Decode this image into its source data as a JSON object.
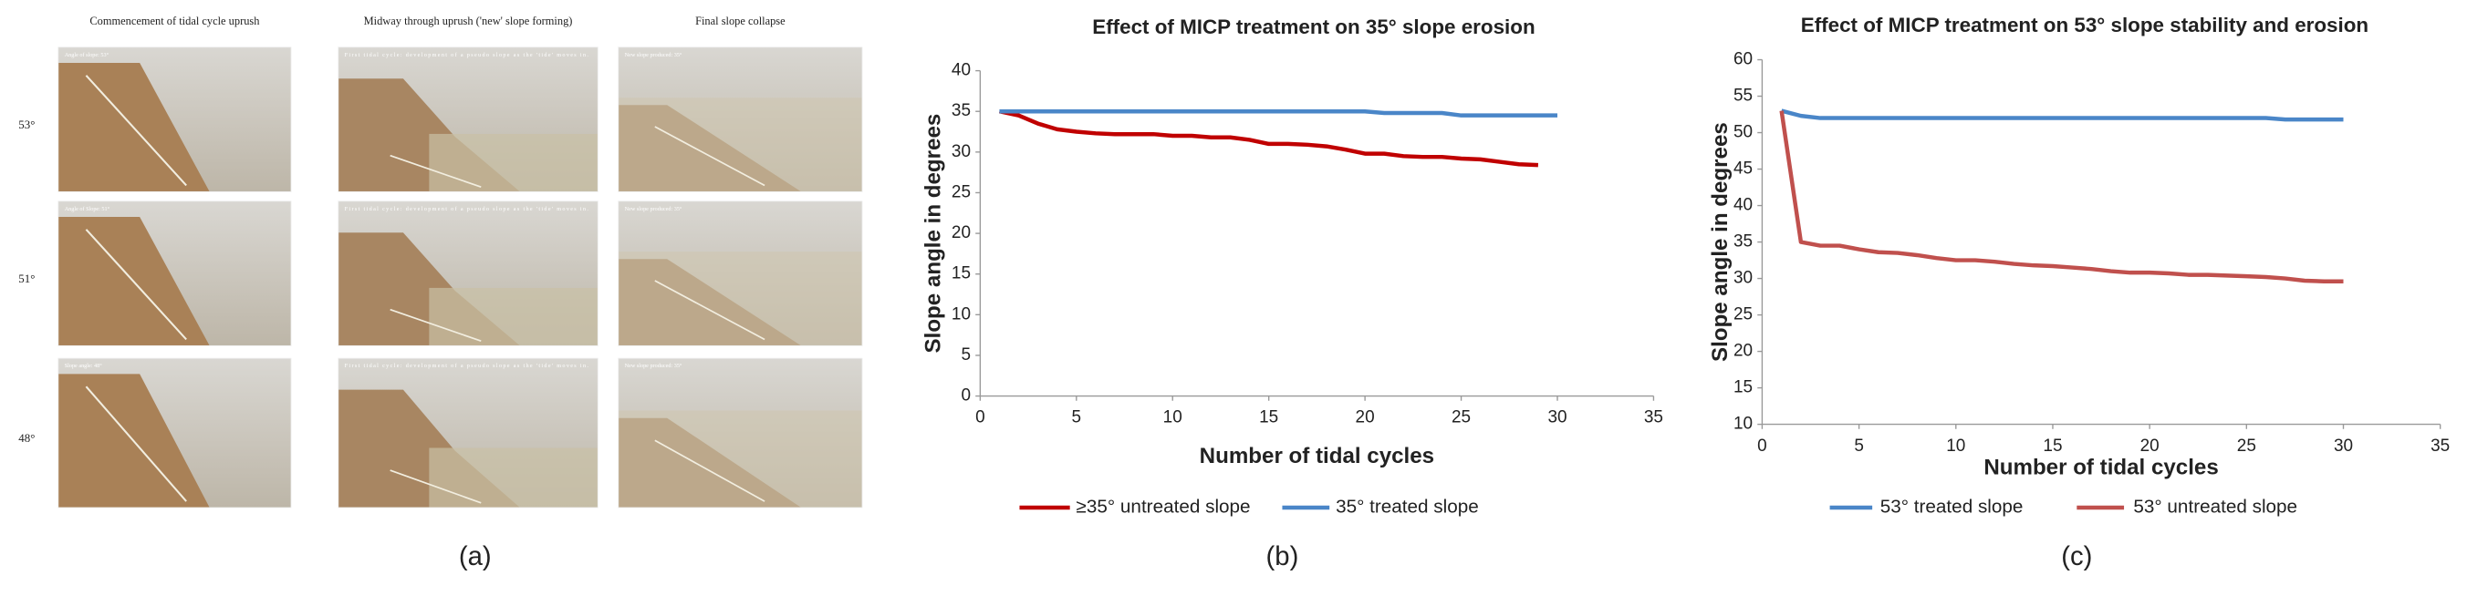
{
  "panel_a": {
    "caption": "(a)",
    "columns": [
      "Commencement of tidal cycle uprush",
      "Midway through uprush ('new' slope forming)",
      "Final slope collapse"
    ],
    "rows": [
      "53°",
      "51°",
      "48°"
    ],
    "photo_labels": [
      [
        "Angle of slope: 53°",
        "First tidal cycle: development of a pseudo slope as the 'tide' moves in.",
        "New slope produced: 35°"
      ],
      [
        "Angle of Slope: 51°",
        "First tidal cycle: development of a pseudo slope as the 'tide' moves in.",
        "New slope produced: 35°"
      ],
      [
        "Slope angle: 48°",
        "First tidal cycle: development of a pseudo slope as the 'tide' moves in.",
        "New slope produced: 35°"
      ]
    ]
  },
  "chart_data": [
    {
      "type": "line",
      "caption": "(b)",
      "title": "Effect of MICP treatment on 35° slope erosion",
      "xlabel": "Number of tidal cycles",
      "ylabel": "Slope angle in degrees",
      "xlim": [
        0,
        35
      ],
      "xticks": [
        0,
        5,
        10,
        15,
        20,
        25,
        30,
        35
      ],
      "ylim": [
        0,
        40
      ],
      "yticks": [
        0,
        5,
        10,
        15,
        20,
        25,
        30,
        35,
        40
      ],
      "legend": "bottom",
      "series": [
        {
          "name": "≥35° untreated slope",
          "color": "#c00000",
          "x": [
            1,
            2,
            3,
            4,
            5,
            6,
            7,
            8,
            9,
            10,
            11,
            12,
            13,
            14,
            15,
            16,
            17,
            18,
            19,
            20,
            21,
            22,
            23,
            24,
            25,
            26,
            27,
            28,
            29
          ],
          "values": [
            35,
            34.5,
            33.5,
            32.8,
            32.5,
            32.3,
            32.2,
            32.2,
            32.2,
            32,
            32,
            31.8,
            31.8,
            31.5,
            31,
            31,
            30.9,
            30.7,
            30.3,
            29.8,
            29.8,
            29.5,
            29.4,
            29.4,
            29.2,
            29.1,
            28.8,
            28.5,
            28.4
          ]
        },
        {
          "name": "35° treated slope",
          "color": "#4a86c8",
          "x": [
            1,
            2,
            3,
            4,
            5,
            6,
            7,
            8,
            9,
            10,
            11,
            12,
            13,
            14,
            15,
            16,
            17,
            18,
            19,
            20,
            21,
            22,
            23,
            24,
            25,
            26,
            27,
            28,
            29,
            30
          ],
          "values": [
            35,
            35,
            35,
            35,
            35,
            35,
            35,
            35,
            35,
            35,
            35,
            35,
            35,
            35,
            35,
            35,
            35,
            35,
            35,
            35,
            34.8,
            34.8,
            34.8,
            34.8,
            34.5,
            34.5,
            34.5,
            34.5,
            34.5,
            34.5
          ]
        }
      ]
    },
    {
      "type": "line",
      "caption": "(c)",
      "title": "Effect of MICP treatment on 53° slope stability and erosion",
      "xlabel": "Number of tidal cycles",
      "ylabel": "Slope angle in degrees",
      "xlim": [
        0,
        35
      ],
      "xticks": [
        0,
        5,
        10,
        15,
        20,
        25,
        30,
        35
      ],
      "ylim": [
        10,
        60
      ],
      "yticks": [
        10,
        15,
        20,
        25,
        30,
        35,
        40,
        45,
        50,
        55,
        60
      ],
      "legend": "bottom",
      "series": [
        {
          "name": "53° treated slope",
          "color": "#4a86c8",
          "x": [
            1,
            2,
            3,
            4,
            5,
            6,
            7,
            8,
            9,
            10,
            11,
            12,
            13,
            14,
            15,
            16,
            17,
            18,
            19,
            20,
            21,
            22,
            23,
            24,
            25,
            26,
            27,
            28,
            29,
            30
          ],
          "values": [
            53,
            52.3,
            52,
            52,
            52,
            52,
            52,
            52,
            52,
            52,
            52,
            52,
            52,
            52,
            52,
            52,
            52,
            52,
            52,
            52,
            52,
            52,
            52,
            52,
            52,
            52,
            51.8,
            51.8,
            51.8,
            51.8
          ]
        },
        {
          "name": "53° untreated slope",
          "color": "#c0504d",
          "x": [
            1,
            2,
            3,
            4,
            5,
            6,
            7,
            8,
            9,
            10,
            11,
            12,
            13,
            14,
            15,
            16,
            17,
            18,
            19,
            20,
            21,
            22,
            23,
            24,
            25,
            26,
            27,
            28,
            29,
            30
          ],
          "values": [
            53,
            35,
            34.5,
            34.5,
            34,
            33.6,
            33.5,
            33.2,
            32.8,
            32.5,
            32.5,
            32.3,
            32,
            31.8,
            31.7,
            31.5,
            31.3,
            31,
            30.8,
            30.8,
            30.7,
            30.5,
            30.5,
            30.4,
            30.3,
            30.2,
            30,
            29.7,
            29.6,
            29.6
          ]
        }
      ]
    }
  ]
}
